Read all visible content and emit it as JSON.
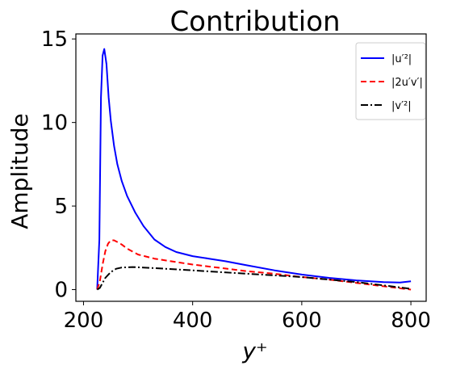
{
  "chart_data": {
    "type": "line",
    "title": "Contribution",
    "xlabel": "y⁺",
    "ylabel": "Amplitude",
    "xlim": [
      186,
      828
    ],
    "ylim": [
      -0.7,
      15.3
    ],
    "xticks": [
      200,
      400,
      600,
      800
    ],
    "yticks": [
      0,
      5,
      10,
      15
    ],
    "grid": false,
    "legend_position": "top-right",
    "series": [
      {
        "name": "|u′²|",
        "color": "#0000ff",
        "style": "solid",
        "x": [
          225,
          229,
          232,
          235,
          238,
          242,
          246,
          250,
          256,
          262,
          270,
          280,
          295,
          310,
          330,
          350,
          370,
          400,
          430,
          460,
          500,
          550,
          600,
          650,
          700,
          750,
          780,
          800
        ],
        "y": [
          0,
          3,
          11.5,
          14,
          14.4,
          13.5,
          11.5,
          10.1,
          8.6,
          7.5,
          6.5,
          5.6,
          4.6,
          3.8,
          3.0,
          2.55,
          2.25,
          2.0,
          1.85,
          1.7,
          1.45,
          1.15,
          0.9,
          0.7,
          0.55,
          0.45,
          0.42,
          0.5
        ]
      },
      {
        "name": "|2u′v′|",
        "color": "#ff0000",
        "style": "dashed",
        "x": [
          225,
          230,
          235,
          240,
          245,
          250,
          256,
          262,
          270,
          280,
          300,
          330,
          360,
          400,
          450,
          500,
          550,
          600,
          650,
          700,
          750,
          800
        ],
        "y": [
          0,
          0.5,
          1.5,
          2.3,
          2.75,
          2.95,
          2.95,
          2.85,
          2.7,
          2.45,
          2.1,
          1.85,
          1.7,
          1.5,
          1.3,
          1.1,
          0.95,
          0.75,
          0.6,
          0.4,
          0.2,
          0
        ]
      },
      {
        "name": "|v′²|",
        "color": "#000000",
        "style": "dashdot",
        "x": [
          225,
          230,
          235,
          240,
          250,
          260,
          270,
          290,
          310,
          350,
          400,
          450,
          500,
          550,
          600,
          650,
          700,
          750,
          800
        ],
        "y": [
          0,
          0.1,
          0.4,
          0.7,
          1.05,
          1.25,
          1.32,
          1.35,
          1.32,
          1.25,
          1.15,
          1.05,
          0.95,
          0.85,
          0.75,
          0.6,
          0.45,
          0.25,
          0.05
        ]
      }
    ]
  }
}
